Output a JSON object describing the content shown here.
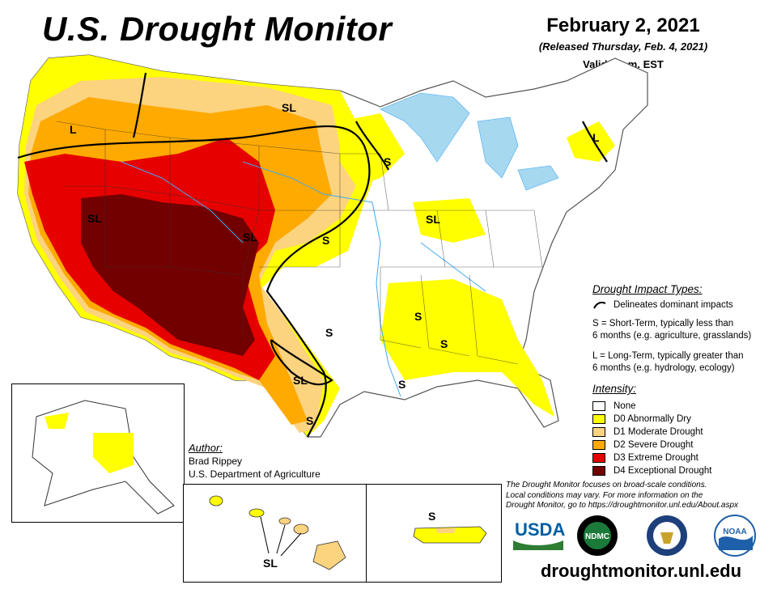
{
  "header": {
    "title": "U.S. Drought Monitor",
    "date": "February 2, 2021",
    "released": "(Released Thursday, Feb. 4, 2021)",
    "valid": "Valid 7 a.m. EST"
  },
  "map_labels": {
    "west_sl": "SL",
    "southwest_sl": "SL",
    "plains_sl": "SL",
    "oregon_l": "L",
    "minnesota_s": "S",
    "kansas_s": "S",
    "illinois_sl": "SL",
    "texas_sl": "SL",
    "texas_s_north": "S",
    "texas_s_south": "S",
    "mississippi_s": "S",
    "alabama_s": "S",
    "louisiana_s": "S",
    "newengland_l": "L",
    "hawaii_sl": "SL",
    "puerto_rico_s": "S"
  },
  "legend": {
    "impact_title": "Drought Impact Types:",
    "impact_line": "Delineates dominant impacts",
    "short_term_line1": "S = Short-Term, typically less than",
    "short_term_line2": "6 months (e.g. agriculture, grasslands)",
    "long_term_line1": "L = Long-Term, typically greater than",
    "long_term_line2": "6 months (e.g. hydrology, ecology)",
    "intensity_title": "Intensity:",
    "categories": [
      {
        "label": "None",
        "color": "#ffffff"
      },
      {
        "label": "D0 Abnormally Dry",
        "color": "#ffff00"
      },
      {
        "label": "D1 Moderate Drought",
        "color": "#fcd37f"
      },
      {
        "label": "D2 Severe Drought",
        "color": "#ffaa00"
      },
      {
        "label": "D3 Extreme Drought",
        "color": "#e60000"
      },
      {
        "label": "D4 Exceptional Drought",
        "color": "#730000"
      }
    ]
  },
  "author": {
    "heading": "Author:",
    "name": "Brad Rippey",
    "org": "U.S. Department of Agriculture"
  },
  "note": {
    "line1": "The Drought Monitor focuses on broad-scale conditions.",
    "line2": "Local conditions may vary. For more information on the",
    "line3": "Drought Monitor, go to https://droughtmonitor.unl.edu/About.aspx"
  },
  "logos": {
    "usda": "USDA",
    "ndmc": "NDMC",
    "noaa": "NOAA"
  },
  "website": "droughtmonitor.unl.edu",
  "colors": {
    "water": "#a6d8f0",
    "rivers": "#3fa9f5",
    "usda_blue": "#005ea2",
    "usda_green": "#2e7d32",
    "ndmc_green": "#1b7a3a",
    "noaa_blue": "#1d5fa8"
  }
}
